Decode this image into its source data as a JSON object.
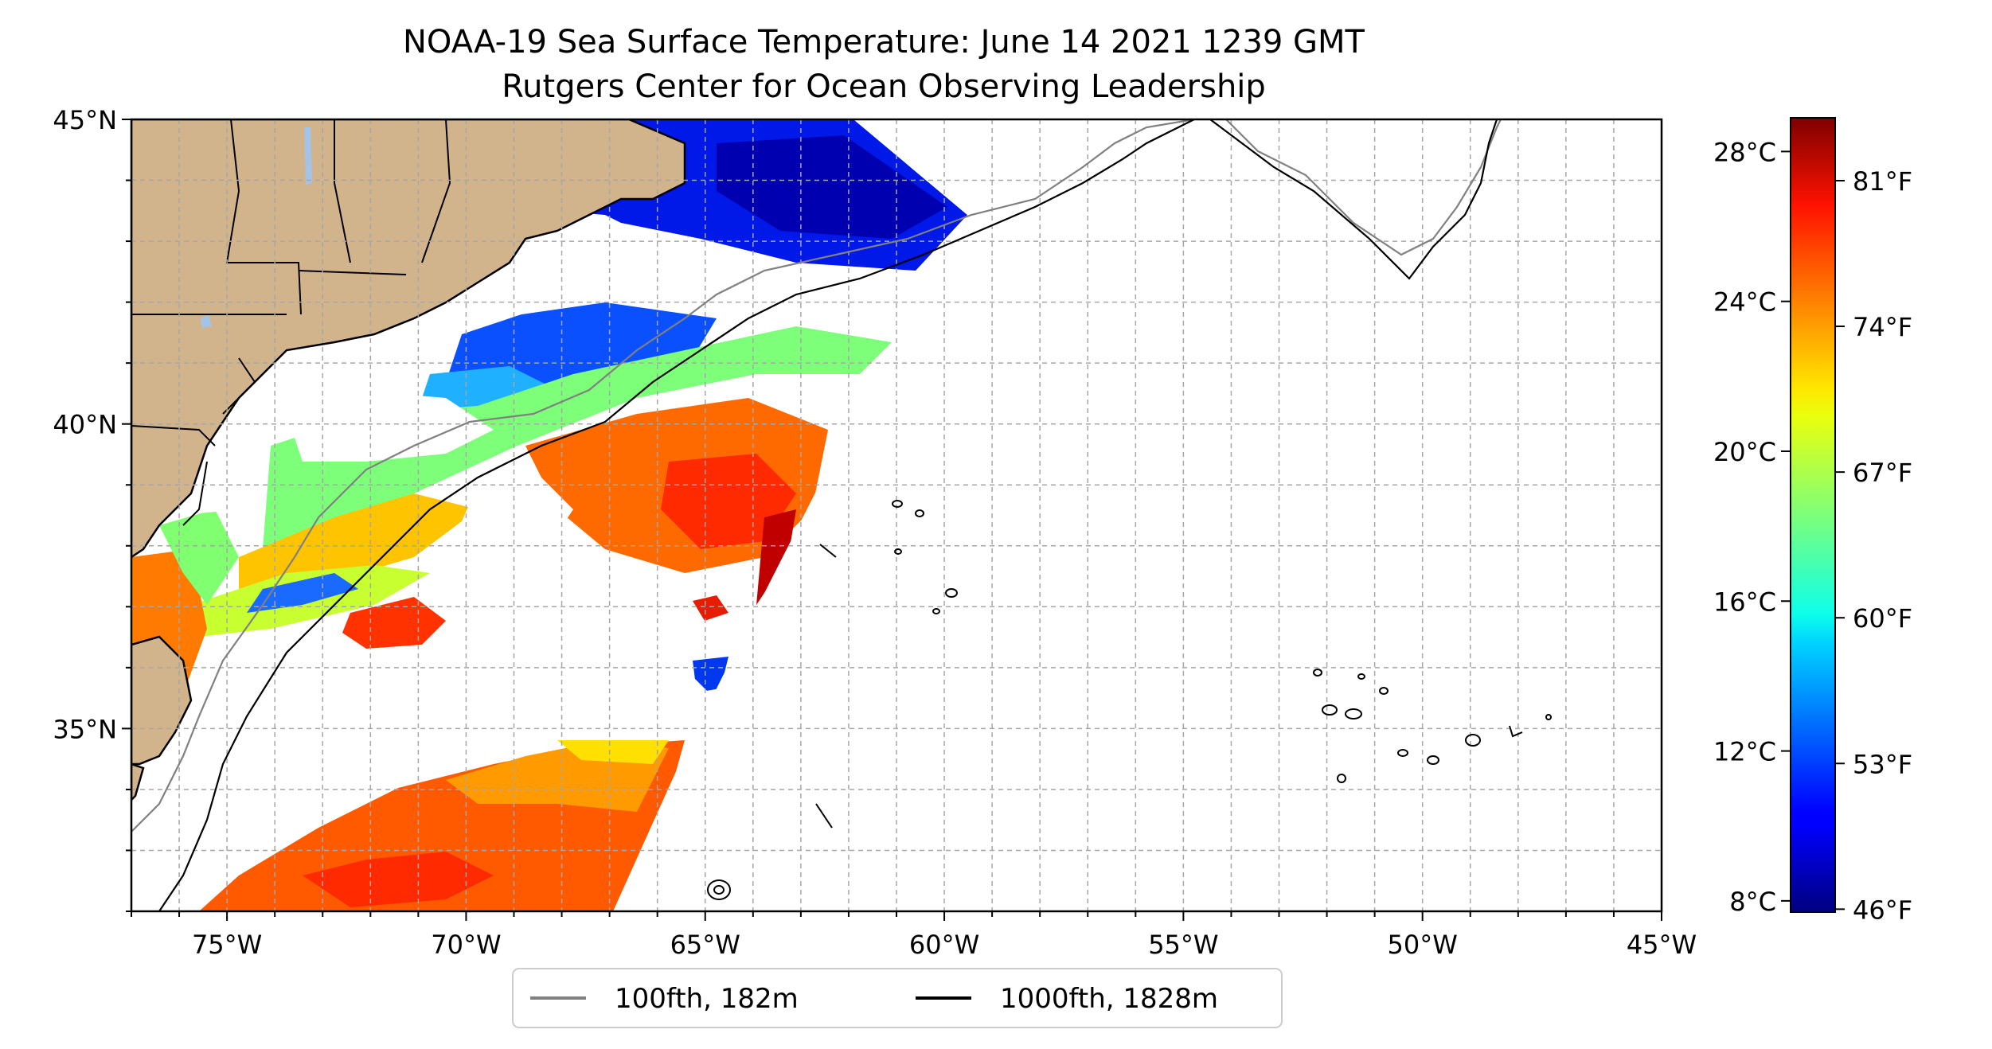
{
  "title_line1": "NOAA-19 Sea Surface Temperature: June 14 2021 1239 GMT",
  "title_line2": "Rutgers Center for Ocean Observing Leadership",
  "map": {
    "extent": {
      "lon_min": -77,
      "lon_max": -45,
      "lat_min": 32,
      "lat_max": 45
    },
    "lon_ticks": [
      {
        "value": -75,
        "label": "75°W"
      },
      {
        "value": -70,
        "label": "70°W"
      },
      {
        "value": -65,
        "label": "65°W"
      },
      {
        "value": -60,
        "label": "60°W"
      },
      {
        "value": -55,
        "label": "55°W"
      },
      {
        "value": -50,
        "label": "50°W"
      },
      {
        "value": -45,
        "label": "45°W"
      }
    ],
    "lat_ticks": [
      {
        "value": 45,
        "label": "45°N"
      },
      {
        "value": 40,
        "label": "40°N"
      },
      {
        "value": 35,
        "label": "35°N"
      }
    ],
    "gridlines": "dashed, every 1 degree",
    "land_color": "#d2b48c",
    "no_data_color": "#ffffff"
  },
  "legend": {
    "placement": "below map",
    "items": [
      {
        "label": "100fth, 182m",
        "color": "#808080"
      },
      {
        "label": "1000fth, 1828m",
        "color": "#000000"
      }
    ]
  },
  "colorbar": {
    "colormap": "jet",
    "range_c": [
      7.7,
      28.9
    ],
    "celsius_ticks": [
      {
        "value": 28,
        "label": "28°C"
      },
      {
        "value": 24,
        "label": "24°C"
      },
      {
        "value": 20,
        "label": "20°C"
      },
      {
        "value": 16,
        "label": "16°C"
      },
      {
        "value": 12,
        "label": "12°C"
      },
      {
        "value": 8,
        "label": "8°C"
      }
    ],
    "fahrenheit_ticks": [
      {
        "value": 81,
        "label": "81°F"
      },
      {
        "value": 74,
        "label": "74°F"
      },
      {
        "value": 67,
        "label": "67°F"
      },
      {
        "value": 60,
        "label": "60°F"
      },
      {
        "value": 53,
        "label": "53°F"
      },
      {
        "value": 46,
        "label": "46°F"
      }
    ]
  }
}
